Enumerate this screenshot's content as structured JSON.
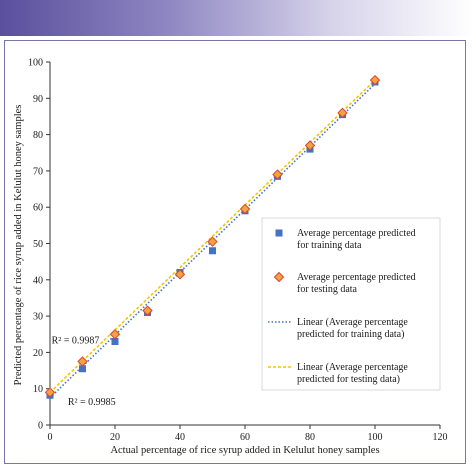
{
  "chart_data": {
    "type": "scatter",
    "title": "",
    "xlabel": "Actual percentage of rice syrup added in Kelulut honey samples",
    "ylabel": "Predicted percentage of rice syrup added in Kelulut honey samples",
    "xlim": [
      0,
      120
    ],
    "ylim": [
      0,
      100
    ],
    "xticks": [
      "0",
      "20",
      "40",
      "60",
      "80",
      "100",
      "120"
    ],
    "yticks": [
      "0",
      "10",
      "20",
      "30",
      "40",
      "50",
      "60",
      "70",
      "80",
      "90",
      "100"
    ],
    "grid": false,
    "legend_position": "right",
    "series": [
      {
        "name": "Average percentage predicted for training data",
        "marker": "square",
        "color": "#4472c4",
        "x": [
          0,
          10,
          20,
          30,
          40,
          50,
          60,
          70,
          80,
          90,
          100
        ],
        "y": [
          8.2,
          15.5,
          23,
          31,
          42,
          48,
          59,
          68.5,
          76,
          85.5,
          94.5
        ]
      },
      {
        "name": "Average percentage predicted for testing data",
        "marker": "diamond",
        "color": "#f4a23c",
        "edge_color": "#d9433a",
        "x": [
          0,
          10,
          20,
          30,
          40,
          50,
          60,
          70,
          80,
          90,
          100
        ],
        "y": [
          9,
          17.5,
          25,
          31.5,
          41.5,
          50.5,
          59.5,
          69,
          77,
          86,
          95
        ]
      }
    ],
    "trendlines": [
      {
        "name": "Linear (Average percentage predicted for training data)",
        "color": "#4472c4",
        "style": "dotted",
        "x": [
          0,
          100
        ],
        "y": [
          7.5,
          94
        ]
      },
      {
        "name": "Linear (Average percentage predicted for testing data)",
        "color": "#f2c500",
        "style": "dashed",
        "x": [
          0,
          100
        ],
        "y": [
          9,
          95
        ]
      }
    ],
    "annotations": [
      {
        "text": "R² = 0.9987",
        "x": 0.5,
        "y": 22.5
      },
      {
        "text": "R² = 0.9985",
        "x": 5.5,
        "y": 5.5
      }
    ],
    "legend": [
      "Average percentage predicted for training data",
      "Average percentage predicted for testing data",
      "Linear (Average percentage predicted for training data)",
      "Linear (Average percentage predicted for testing data)"
    ]
  }
}
